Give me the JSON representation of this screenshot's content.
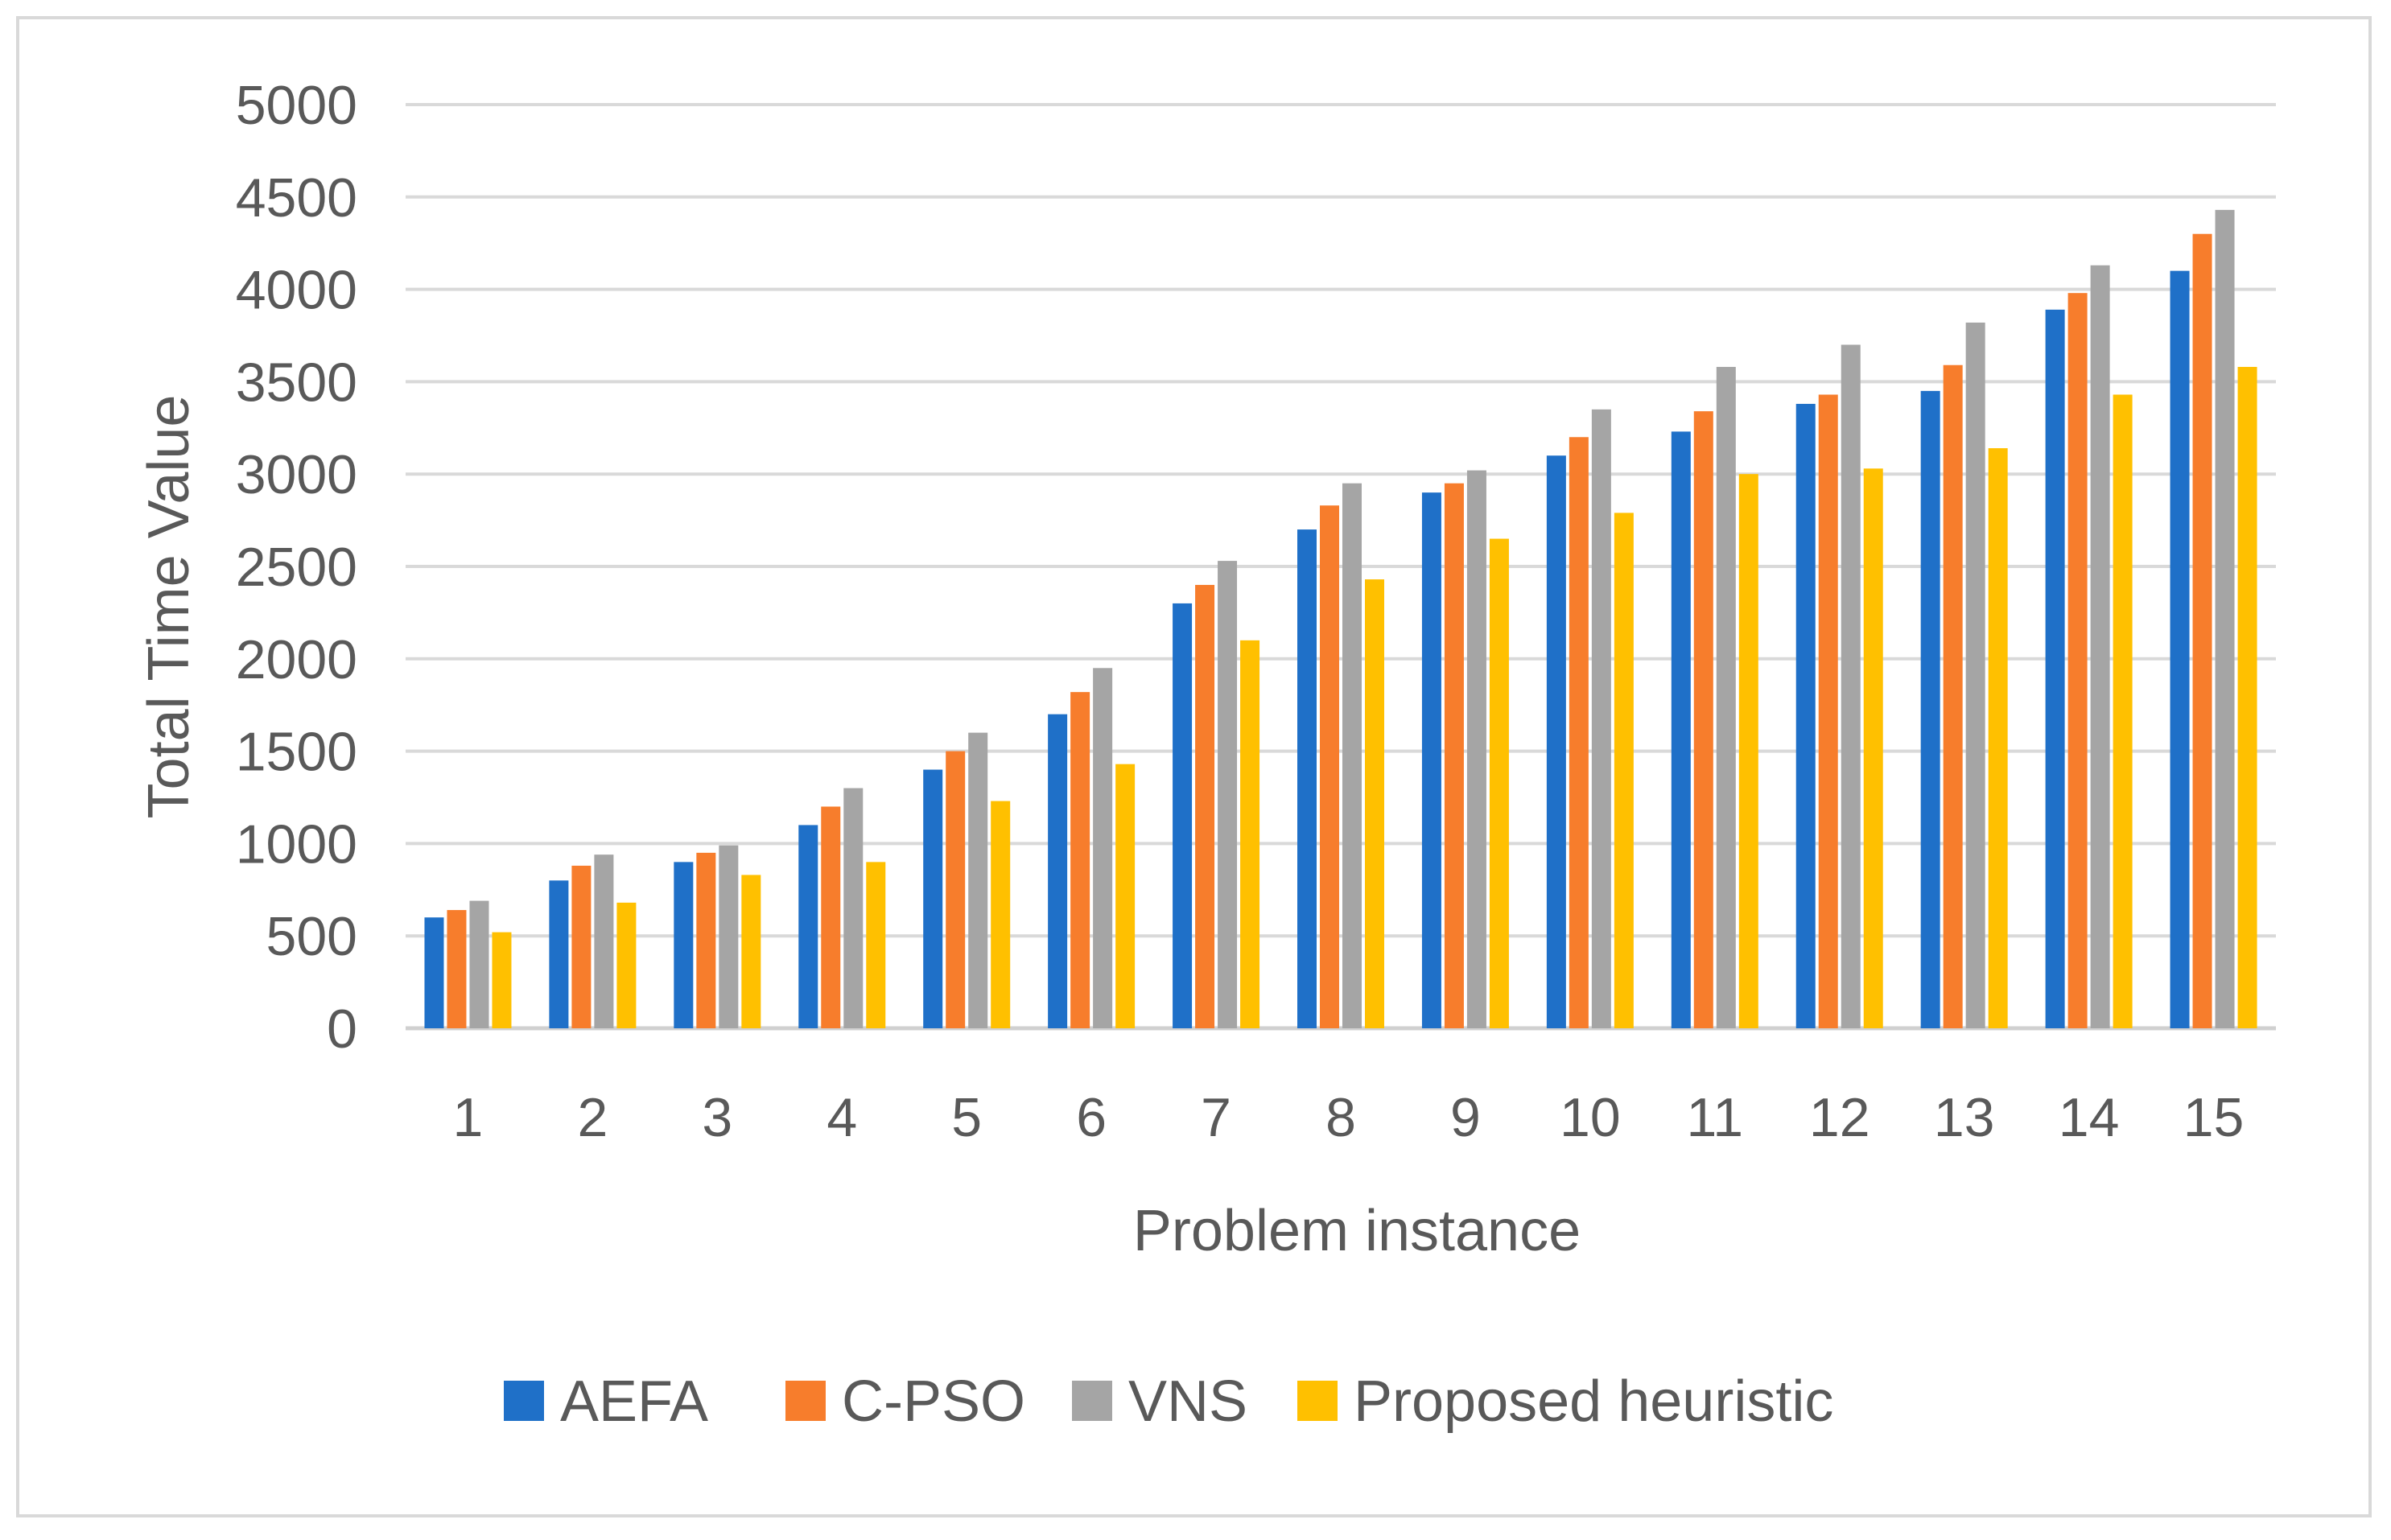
{
  "chart_data": {
    "type": "bar",
    "title": "",
    "xlabel": "Problem instance",
    "ylabel": "Total Time Value",
    "ylim": [
      0,
      5000
    ],
    "yticks": [
      0,
      500,
      1000,
      1500,
      2000,
      2500,
      3000,
      3500,
      4000,
      4500,
      5000
    ],
    "grid": true,
    "legend_position": "bottom",
    "categories": [
      "1",
      "2",
      "3",
      "4",
      "5",
      "6",
      "7",
      "8",
      "9",
      "10",
      "11",
      "12",
      "13",
      "14",
      "15"
    ],
    "series": [
      {
        "name": "AEFA",
        "color": "#1f70c8",
        "values": [
          600,
          800,
          900,
          1100,
          1400,
          1700,
          2300,
          2700,
          2900,
          3100,
          3230,
          3380,
          3450,
          3890,
          4100
        ]
      },
      {
        "name": "C-PSO",
        "color": "#f77d2c",
        "values": [
          640,
          880,
          950,
          1200,
          1500,
          1820,
          2400,
          2830,
          2950,
          3200,
          3340,
          3430,
          3590,
          3980,
          4300
        ]
      },
      {
        "name": "VNS",
        "color": "#a5a5a5",
        "values": [
          690,
          940,
          990,
          1300,
          1600,
          1950,
          2530,
          2950,
          3020,
          3350,
          3580,
          3700,
          3820,
          4130,
          4430
        ]
      },
      {
        "name": "Proposed heuristic",
        "color": "#ffc000",
        "values": [
          520,
          680,
          830,
          900,
          1230,
          1430,
          2100,
          2430,
          2650,
          2790,
          3000,
          3030,
          3140,
          3430,
          3580
        ]
      }
    ]
  }
}
